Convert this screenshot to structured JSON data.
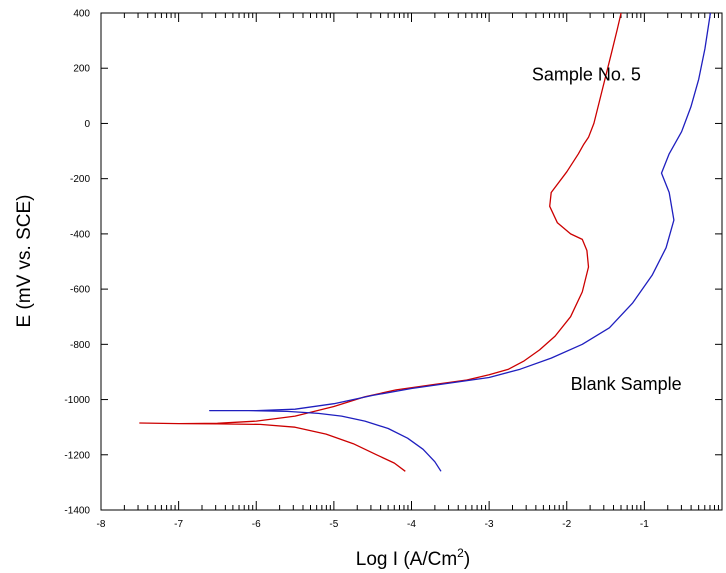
{
  "chart_data": {
    "type": "line",
    "title": "",
    "xlabel": "Log I (A/Cm",
    "xlabel_sup": "2",
    "xlabel_close": ")",
    "ylabel": "E (mV vs. SCE)",
    "xlim": [
      -8,
      0
    ],
    "ylim": [
      -1400,
      400
    ],
    "xticks": [
      {
        "v": -8,
        "label": "-8"
      },
      {
        "v": -7,
        "label": "-7"
      },
      {
        "v": -6,
        "label": "-6"
      },
      {
        "v": -5,
        "label": "-5"
      },
      {
        "v": -4,
        "label": "-4"
      },
      {
        "v": -3,
        "label": "-3"
      },
      {
        "v": -2,
        "label": "-2"
      },
      {
        "v": -1,
        "label": "-1"
      }
    ],
    "yticks": [
      {
        "v": 400,
        "label": "400"
      },
      {
        "v": 200,
        "label": "200"
      },
      {
        "v": 0,
        "label": "0"
      },
      {
        "v": -200,
        "label": "-200"
      },
      {
        "v": -400,
        "label": "-400"
      },
      {
        "v": -600,
        "label": "-600"
      },
      {
        "v": -800,
        "label": "-800"
      },
      {
        "v": -1000,
        "label": "-1000"
      },
      {
        "v": -1200,
        "label": "-1200"
      },
      {
        "v": -1400,
        "label": "-1400"
      }
    ],
    "grid": false,
    "annotations": [
      {
        "text": "Sample No. 5",
        "x": -2.45,
        "y": 155
      },
      {
        "text": "Blank Sample",
        "x": -1.95,
        "y": -965
      }
    ],
    "series": [
      {
        "color": "#cc0000",
        "x": [
          -4.08,
          -4.22,
          -4.45,
          -4.75,
          -5.1,
          -5.5,
          -5.95,
          -6.5,
          -7.0,
          -7.5,
          -7.0,
          -6.5,
          -6.0,
          -5.5,
          -5.0,
          -4.6,
          -4.2,
          -3.7,
          -3.3,
          -3.0,
          -2.75,
          -2.55,
          -2.35,
          -2.15,
          -1.95,
          -1.8,
          -1.72,
          -1.74,
          -1.8,
          -1.95,
          -2.12,
          -2.22,
          -2.2,
          -2.0,
          -1.85,
          -1.78,
          -1.72,
          -1.65,
          -1.58,
          -1.5,
          -1.42,
          -1.35,
          -1.3
        ],
        "y": [
          -1260,
          -1230,
          -1200,
          -1160,
          -1125,
          -1100,
          -1090,
          -1088,
          -1087,
          -1085,
          -1087,
          -1086,
          -1078,
          -1060,
          -1025,
          -990,
          -965,
          -945,
          -930,
          -910,
          -890,
          -860,
          -820,
          -770,
          -700,
          -610,
          -520,
          -460,
          -420,
          -400,
          -360,
          -300,
          -250,
          -175,
          -110,
          -75,
          -50,
          0,
          80,
          170,
          260,
          340,
          400
        ]
      },
      {
        "color": "#1f1fbf",
        "x": [
          -3.62,
          -3.7,
          -3.85,
          -4.05,
          -4.3,
          -4.6,
          -4.9,
          -5.2,
          -5.6,
          -6.1,
          -6.6,
          -6.0,
          -5.5,
          -5.0,
          -4.5,
          -4.0,
          -3.5,
          -3.0,
          -2.6,
          -2.2,
          -1.8,
          -1.45,
          -1.15,
          -0.9,
          -0.72,
          -0.62,
          -0.68,
          -0.78,
          -0.68,
          -0.52,
          -0.4,
          -0.3,
          -0.22,
          -0.15
        ],
        "y": [
          -1260,
          -1225,
          -1180,
          -1140,
          -1105,
          -1078,
          -1060,
          -1050,
          -1043,
          -1040,
          -1040,
          -1040,
          -1035,
          -1015,
          -985,
          -960,
          -940,
          -920,
          -890,
          -850,
          -800,
          -740,
          -650,
          -550,
          -450,
          -350,
          -250,
          -180,
          -110,
          -30,
          60,
          160,
          270,
          400
        ]
      }
    ]
  }
}
